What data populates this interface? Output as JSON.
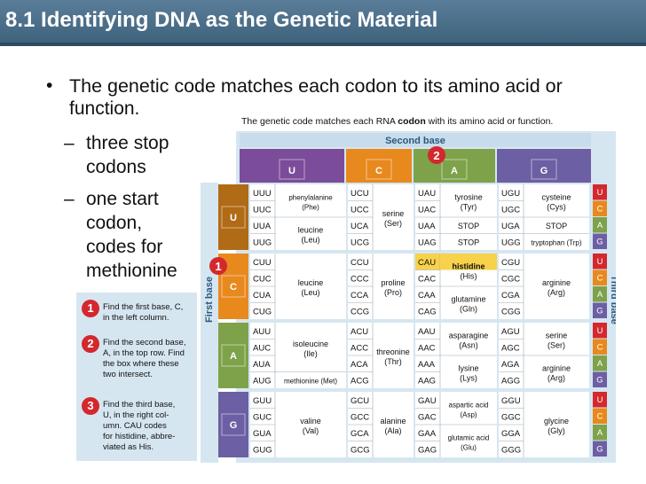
{
  "slide": {
    "title": "8.1 Identifying DNA as the Genetic Material",
    "bullet_main_line1": "The genetic code matches each codon to its amino acid or",
    "bullet_main_line2": "function.",
    "sub1_line1": "three stop",
    "sub1_line2": "codons",
    "sub2_line1": "one start",
    "sub2_line2": "codon,",
    "sub2_line3": "codes for",
    "sub2_line4": "methionine",
    "bullet_glyph": "•",
    "dash_glyph": "–"
  },
  "figure": {
    "caption_pre": "The genetic code matches each RNA ",
    "caption_bold": "codon",
    "caption_post": " with its amino acid or function.",
    "second_base_label": "Second base",
    "first_base_label": "First base",
    "third_base_label": "Third base",
    "bases": [
      "U",
      "C",
      "A",
      "G"
    ],
    "marker_1": "1",
    "marker_2": "2",
    "marker_3": "3",
    "column_colors": [
      "#7a4c99",
      "#e8891e",
      "#7ea24a",
      "#6c5fa3"
    ],
    "row_colors": [
      "#b06b16",
      "#e8891e",
      "#7ea24a",
      "#6c5fa3"
    ],
    "third_colors": [
      "#d3282d",
      "#e8891e",
      "#7ea24a",
      "#6c5fa3"
    ],
    "highlight_color": "#f7d24a",
    "rows": [
      [
        {
          "codons": [
            "UUU",
            "UUC",
            "UUA",
            "UUG"
          ],
          "groups": [
            {
              "n": 2,
              "l1": "phenylalanine",
              "l2": "(Phe)"
            },
            {
              "n": 2,
              "l1": "leucine",
              "l2": "(Leu)"
            }
          ]
        },
        {
          "codons": [
            "UCU",
            "UCC",
            "UCA",
            "UCG"
          ],
          "groups": [
            {
              "n": 4,
              "l1": "serine",
              "l2": "(Ser)"
            }
          ]
        },
        {
          "codons": [
            "UAU",
            "UAC",
            "UAA",
            "UAG"
          ],
          "groups": [
            {
              "n": 2,
              "l1": "tyrosine",
              "l2": "(Tyr)"
            },
            {
              "n": 1,
              "l1": "STOP",
              "l2": ""
            },
            {
              "n": 1,
              "l1": "STOP",
              "l2": ""
            }
          ]
        },
        {
          "codons": [
            "UGU",
            "UGC",
            "UGA",
            "UGG"
          ],
          "groups": [
            {
              "n": 2,
              "l1": "cysteine",
              "l2": "(Cys)"
            },
            {
              "n": 1,
              "l1": "STOP",
              "l2": ""
            },
            {
              "n": 1,
              "l1": "tryptophan (Trp)",
              "l2": ""
            }
          ]
        }
      ],
      [
        {
          "codons": [
            "CUU",
            "CUC",
            "CUA",
            "CUG"
          ],
          "groups": [
            {
              "n": 4,
              "l1": "leucine",
              "l2": "(Leu)"
            }
          ]
        },
        {
          "codons": [
            "CCU",
            "CCC",
            "CCA",
            "CCG"
          ],
          "groups": [
            {
              "n": 4,
              "l1": "proline",
              "l2": "(Pro)"
            }
          ]
        },
        {
          "codons": [
            "CAU",
            "CAC",
            "CAA",
            "CAG"
          ],
          "groups": [
            {
              "n": 2,
              "l1": "histidine",
              "l2": "(His)",
              "hl": true
            },
            {
              "n": 2,
              "l1": "glutamine",
              "l2": "(Gln)"
            }
          ]
        },
        {
          "codons": [
            "CGU",
            "CGC",
            "CGA",
            "CGG"
          ],
          "groups": [
            {
              "n": 4,
              "l1": "arginine",
              "l2": "(Arg)"
            }
          ]
        }
      ],
      [
        {
          "codons": [
            "AUU",
            "AUC",
            "AUA",
            "AUG"
          ],
          "groups": [
            {
              "n": 3,
              "l1": "isoleucine",
              "l2": "(Ile)"
            },
            {
              "n": 1,
              "l1": "methionine (Met)",
              "l2": ""
            }
          ]
        },
        {
          "codons": [
            "ACU",
            "ACC",
            "ACA",
            "ACG"
          ],
          "groups": [
            {
              "n": 4,
              "l1": "threonine",
              "l2": "(Thr)"
            }
          ]
        },
        {
          "codons": [
            "AAU",
            "AAC",
            "AAA",
            "AAG"
          ],
          "groups": [
            {
              "n": 2,
              "l1": "asparagine",
              "l2": "(Asn)"
            },
            {
              "n": 2,
              "l1": "lysine",
              "l2": "(Lys)"
            }
          ]
        },
        {
          "codons": [
            "AGU",
            "AGC",
            "AGA",
            "AGG"
          ],
          "groups": [
            {
              "n": 2,
              "l1": "serine",
              "l2": "(Ser)"
            },
            {
              "n": 2,
              "l1": "arginine",
              "l2": "(Arg)"
            }
          ]
        }
      ],
      [
        {
          "codons": [
            "GUU",
            "GUC",
            "GUA",
            "GUG"
          ],
          "groups": [
            {
              "n": 4,
              "l1": "valine",
              "l2": "(Val)"
            }
          ]
        },
        {
          "codons": [
            "GCU",
            "GCC",
            "GCA",
            "GCG"
          ],
          "groups": [
            {
              "n": 4,
              "l1": "alanine",
              "l2": "(Ala)"
            }
          ]
        },
        {
          "codons": [
            "GAU",
            "GAC",
            "GAA",
            "GAG"
          ],
          "groups": [
            {
              "n": 2,
              "l1": "aspartic acid",
              "l2": "(Asp)"
            },
            {
              "n": 2,
              "l1": "glutamic acid",
              "l2": "(Glu)"
            }
          ]
        },
        {
          "codons": [
            "GGU",
            "GGC",
            "GGA",
            "GGG"
          ],
          "groups": [
            {
              "n": 4,
              "l1": "glycine",
              "l2": "(Gly)"
            }
          ]
        }
      ]
    ],
    "highlight_codon": "CAU",
    "steps": [
      {
        "num": "1",
        "lines": [
          "Find the first base, C,",
          "in the left column."
        ]
      },
      {
        "num": "2",
        "lines": [
          "Find the second base,",
          "A, in the top row. Find",
          "the box where these",
          "two intersect."
        ]
      },
      {
        "num": "3",
        "lines": [
          "Find the third base,",
          "U, in the right col-",
          "umn. CAU codes",
          "for histidine, abbre-",
          "viated as His."
        ]
      }
    ]
  }
}
